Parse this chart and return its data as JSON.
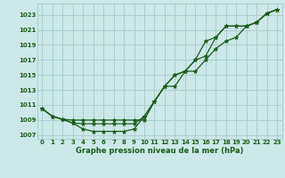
{
  "title": "Graphe pression niveau de la mer (hPa)",
  "bg_color": "#cce8e8",
  "grid_color": "#aacece",
  "line_color": "#1a5e1a",
  "x_labels": [
    "0",
    "1",
    "2",
    "3",
    "4",
    "5",
    "6",
    "7",
    "8",
    "9",
    "10",
    "11",
    "12",
    "13",
    "14",
    "15",
    "16",
    "17",
    "18",
    "19",
    "20",
    "21",
    "22",
    "23"
  ],
  "ylim": [
    1006.5,
    1024.5
  ],
  "yticks": [
    1007,
    1009,
    1011,
    1013,
    1015,
    1017,
    1019,
    1021,
    1023
  ],
  "line1": [
    1010.5,
    1009.5,
    1009.1,
    1009.0,
    1009.0,
    1009.0,
    1009.0,
    1009.0,
    1009.0,
    1009.0,
    1009.0,
    1011.5,
    1013.5,
    1015.0,
    1015.5,
    1017.0,
    1017.5,
    1020.0,
    1021.5,
    1021.5,
    1021.5,
    1022.0,
    1023.2,
    1023.7
  ],
  "line2": [
    1010.5,
    1009.5,
    1009.1,
    1008.6,
    1008.5,
    1008.5,
    1008.5,
    1008.5,
    1008.5,
    1008.5,
    1009.5,
    1011.5,
    1013.5,
    1015.0,
    1015.5,
    1017.0,
    1019.5,
    1020.0,
    1021.5,
    1021.5,
    1021.5,
    1022.0,
    1023.2,
    1023.7
  ],
  "line3": [
    1010.5,
    1009.5,
    1009.1,
    1008.6,
    1007.8,
    1007.5,
    1007.5,
    1007.5,
    1007.5,
    1007.8,
    1009.5,
    1011.5,
    1013.5,
    1013.5,
    1015.5,
    1015.5,
    1017.0,
    1018.5,
    1019.5,
    1020.0,
    1021.5,
    1022.0,
    1023.2,
    1023.7
  ],
  "marker": "*",
  "marker_size": 3.5,
  "linewidth": 0.9
}
